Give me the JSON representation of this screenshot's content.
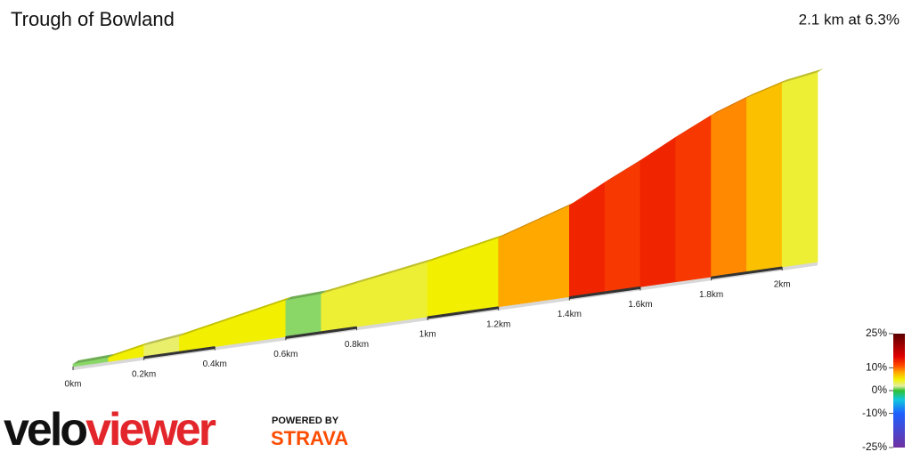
{
  "chart_data": {
    "type": "elevation-profile",
    "title": "Trough of Bowland",
    "subtitle": "2.1 km at 6.3%",
    "x": [
      0,
      0.1,
      0.2,
      0.3,
      0.4,
      0.5,
      0.6,
      0.7,
      0.8,
      0.9,
      1.0,
      1.1,
      1.2,
      1.3,
      1.4,
      1.5,
      1.6,
      1.7,
      1.8,
      1.9,
      2.0,
      2.1
    ],
    "gradients": [
      1,
      5,
      3,
      5,
      5,
      5,
      1,
      4,
      4,
      4,
      5,
      5,
      8,
      8,
      13,
      12,
      13,
      12,
      9,
      7,
      4
    ],
    "xlim": [
      0,
      2.1
    ],
    "xticks": [
      {
        "value": 0,
        "label": "0km"
      },
      {
        "value": 0.2,
        "label": "0.2km"
      },
      {
        "value": 0.4,
        "label": "0.4km"
      },
      {
        "value": 0.6,
        "label": "0.6km"
      },
      {
        "value": 0.8,
        "label": "0.8km"
      },
      {
        "value": 1,
        "label": "1km"
      },
      {
        "value": 1.2,
        "label": "1.2km"
      },
      {
        "value": 1.4,
        "label": "1.4km"
      },
      {
        "value": 1.6,
        "label": "1.6km"
      },
      {
        "value": 1.8,
        "label": "1.8km"
      },
      {
        "value": 2,
        "label": "2km"
      }
    ],
    "colorbar": {
      "lim": [
        -25,
        25
      ],
      "ticks": [
        {
          "value": 25,
          "label": "25%"
        },
        {
          "value": 10,
          "label": "10%"
        },
        {
          "value": 0,
          "label": "0%"
        },
        {
          "value": -10,
          "label": "-10%"
        },
        {
          "value": -25,
          "label": "-25%"
        }
      ],
      "stops": [
        [
          -25,
          "#7030a0"
        ],
        [
          -10,
          "#1e60ff"
        ],
        [
          -4,
          "#10c8e0"
        ],
        [
          0,
          "#30c030"
        ],
        [
          2,
          "#e4eea0"
        ],
        [
          5,
          "#f2f000"
        ],
        [
          8,
          "#ffa800"
        ],
        [
          11,
          "#ff4a00"
        ],
        [
          15,
          "#e00000"
        ],
        [
          25,
          "#5a0000"
        ]
      ]
    }
  },
  "branding": {
    "logo_dark": "velo",
    "logo_red": "viewer",
    "powered": "POWERED BY",
    "strava": "STRAVA"
  }
}
